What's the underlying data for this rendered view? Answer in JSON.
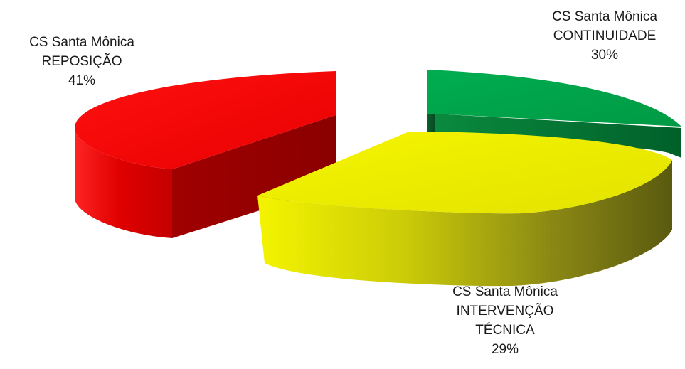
{
  "chart_data": {
    "type": "pie",
    "style": "3d-exploded",
    "title": "",
    "legend": "none",
    "slices": [
      {
        "label_lines": [
          "CS Santa  Mônica",
          "REPOSIÇÃO"
        ],
        "value": 41,
        "value_label": "41%",
        "color": "#e80000"
      },
      {
        "label_lines": [
          "CS Santa  Mônica",
          "CONTINUIDADE"
        ],
        "value": 30,
        "value_label": "30%",
        "color": "#00a34a"
      },
      {
        "label_lines": [
          "CS Santa  Mônica",
          "INTERVENÇÃO",
          "TÉCNICA"
        ],
        "value": 29,
        "value_label": "29%",
        "color": "#e6e600"
      }
    ]
  }
}
